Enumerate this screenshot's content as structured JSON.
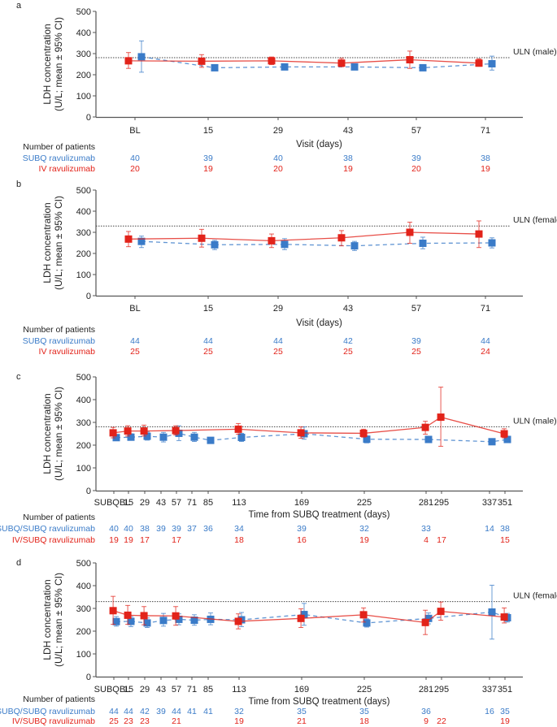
{
  "colors": {
    "subq": "#3a7bc8",
    "iv": "#e2231a",
    "uln": "#444444",
    "axis": "#555555"
  },
  "common": {
    "ylabel_line1": "LDH concentration",
    "ylabel_line2": "(U/L; mean ± 95% CI)",
    "number_of_patients": "Number of patients"
  },
  "chart_data": [
    {
      "panel": "a",
      "type": "line",
      "xlabel": "Visit (days)",
      "ylim": [
        0,
        500
      ],
      "yticks": [
        0,
        100,
        200,
        300,
        400,
        500
      ],
      "categories": [
        "BL",
        "15",
        "29",
        "43",
        "57",
        "71"
      ],
      "uln": {
        "label": "ULN (male)",
        "value": 281
      },
      "series": [
        {
          "name": "SUBQ ravulizumab",
          "color": "#3a7bc8",
          "style": "dashed",
          "mean": [
            285,
            233,
            237,
            237,
            233,
            252
          ],
          "lo": [
            212,
            225,
            225,
            226,
            220,
            222
          ],
          "hi": [
            360,
            241,
            252,
            249,
            246,
            288
          ],
          "patients": [
            "40",
            "39",
            "40",
            "38",
            "39",
            "38"
          ]
        },
        {
          "name": "IV ravulizumab",
          "color": "#e2231a",
          "style": "solid",
          "mean": [
            266,
            264,
            266,
            255,
            271,
            255
          ],
          "lo": [
            230,
            235,
            248,
            238,
            230,
            240
          ],
          "hi": [
            305,
            295,
            284,
            278,
            312,
            275
          ],
          "patients": [
            "20",
            "19",
            "20",
            "19",
            "20",
            "19"
          ]
        }
      ]
    },
    {
      "panel": "b",
      "type": "line",
      "xlabel": "Visit (days)",
      "ylim": [
        0,
        500
      ],
      "yticks": [
        0,
        100,
        200,
        300,
        400,
        500
      ],
      "categories": [
        "BL",
        "15",
        "29",
        "43",
        "57",
        "71"
      ],
      "uln": {
        "label": "ULN (female)",
        "value": 330
      },
      "series": [
        {
          "name": "SUBQ ravulizumab",
          "color": "#3a7bc8",
          "style": "dashed",
          "mean": [
            257,
            241,
            243,
            236,
            248,
            250
          ],
          "lo": [
            228,
            218,
            218,
            214,
            222,
            226
          ],
          "hi": [
            282,
            262,
            270,
            257,
            277,
            274
          ],
          "patients": [
            "44",
            "44",
            "44",
            "42",
            "39",
            "44"
          ]
        },
        {
          "name": "IV ravulizumab",
          "color": "#e2231a",
          "style": "solid",
          "mean": [
            268,
            272,
            260,
            274,
            300,
            292
          ],
          "lo": [
            232,
            230,
            228,
            236,
            248,
            228
          ],
          "hi": [
            304,
            314,
            292,
            308,
            348,
            354
          ],
          "patients": [
            "25",
            "25",
            "25",
            "25",
            "25",
            "24"
          ]
        }
      ]
    },
    {
      "panel": "c",
      "type": "line",
      "xlabel": "Time from SUBQ treatment (days)",
      "ylim": [
        0,
        500
      ],
      "yticks": [
        0,
        100,
        200,
        300,
        400,
        500
      ],
      "categories": [
        "SUBQBL",
        "15",
        "29",
        "43",
        "57",
        "71",
        "85",
        "113",
        "169",
        "225",
        "281",
        "295",
        "337",
        "351"
      ],
      "uln": {
        "label": "ULN (male)",
        "value": 281
      },
      "series": [
        {
          "name": "SUBQ/SUBQ ravulizumab",
          "color": "#3a7bc8",
          "style": "dashed",
          "mean": [
            233,
            235,
            239,
            235,
            252,
            235,
            221,
            234,
            250,
            226,
            225,
            null,
            215,
            225
          ],
          "lo": [
            224,
            222,
            222,
            214,
            220,
            216,
            214,
            216,
            226,
            210,
            216,
            null,
            204,
            216
          ],
          "hi": [
            242,
            250,
            258,
            256,
            285,
            256,
            230,
            252,
            280,
            240,
            234,
            null,
            226,
            234
          ],
          "patients": [
            "40",
            "40",
            "38",
            "39",
            "39",
            "37",
            "36",
            "34",
            "39",
            "32",
            "33",
            "",
            "14",
            "38"
          ]
        },
        {
          "name": "IV/SUBQ ravulizumab",
          "color": "#e2231a",
          "style": "solid",
          "mean": [
            254,
            262,
            262,
            null,
            264,
            null,
            null,
            270,
            254,
            252,
            278,
            323,
            null,
            250
          ],
          "lo": [
            232,
            240,
            240,
            null,
            245,
            null,
            null,
            248,
            230,
            235,
            248,
            195,
            null,
            232
          ],
          "hi": [
            278,
            285,
            288,
            null,
            285,
            null,
            null,
            295,
            280,
            270,
            305,
            455,
            null,
            272
          ],
          "patients": [
            "19",
            "19",
            "17",
            "",
            "17",
            "",
            "",
            "18",
            "16",
            "19",
            "4",
            "17",
            "",
            "15"
          ]
        }
      ]
    },
    {
      "panel": "d",
      "type": "line",
      "xlabel": "Time from SUBQ treatment (days)",
      "ylim": [
        0,
        500
      ],
      "yticks": [
        0,
        100,
        200,
        300,
        400,
        500
      ],
      "categories": [
        "SUBQBL",
        "15",
        "29",
        "43",
        "57",
        "71",
        "85",
        "113",
        "169",
        "225",
        "281",
        "295",
        "337",
        "351"
      ],
      "uln": {
        "label": "ULN (female)",
        "value": 330
      },
      "series": [
        {
          "name": "SUBQ/SUBQ ravulizumab",
          "color": "#3a7bc8",
          "style": "dashed",
          "mean": [
            242,
            243,
            236,
            247,
            252,
            248,
            252,
            250,
            273,
            236,
            256,
            null,
            284,
            259
          ],
          "lo": [
            222,
            220,
            216,
            222,
            228,
            226,
            228,
            220,
            226,
            218,
            232,
            null,
            165,
            240
          ],
          "hi": [
            264,
            264,
            258,
            278,
            276,
            272,
            280,
            282,
            322,
            254,
            280,
            null,
            402,
            278
          ],
          "patients": [
            "44",
            "44",
            "42",
            "39",
            "44",
            "41",
            "41",
            "32",
            "35",
            "35",
            "36",
            "",
            "16",
            "35"
          ]
        },
        {
          "name": "IV/SUBQ ravulizumab",
          "color": "#e2231a",
          "style": "solid",
          "mean": [
            290,
            270,
            268,
            null,
            267,
            null,
            null,
            243,
            256,
            272,
            238,
            287,
            null,
            262
          ],
          "lo": [
            230,
            230,
            228,
            null,
            226,
            null,
            null,
            210,
            216,
            240,
            185,
            248,
            null,
            236
          ],
          "hi": [
            353,
            313,
            308,
            null,
            308,
            null,
            null,
            276,
            298,
            302,
            292,
            328,
            null,
            302
          ],
          "patients": [
            "25",
            "23",
            "23",
            "",
            "21",
            "",
            "",
            "19",
            "21",
            "18",
            "9",
            "22",
            "",
            "19"
          ]
        }
      ]
    }
  ]
}
